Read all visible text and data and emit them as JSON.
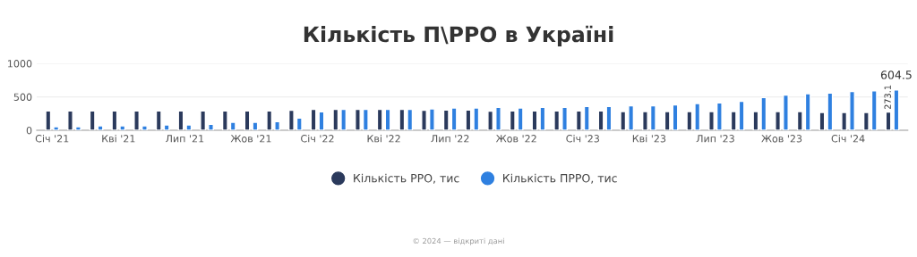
{
  "chart_data": {
    "type": "bar",
    "title": "Кількість П\\РРО в Україні",
    "categories": [
      "Січ '21",
      null,
      null,
      "Кві '21",
      null,
      null,
      "Лип '21",
      null,
      null,
      "Жов '21",
      null,
      null,
      "Січ '22",
      null,
      null,
      "Кві '22",
      null,
      null,
      "Лип '22",
      null,
      null,
      "Жов '22",
      null,
      null,
      "Січ '23",
      null,
      null,
      "Кві '23",
      null,
      null,
      "Лип '23",
      null,
      null,
      "Жов '23",
      null,
      null,
      "Січ '24",
      null,
      null
    ],
    "series": [
      {
        "name": "Кількість РРО, тис",
        "color": "#2b3a5c",
        "values": [
          290,
          290,
          290,
          290,
          290,
          290,
          290,
          290,
          290,
          290,
          290,
          300,
          312,
          312,
          312,
          312,
          312,
          300,
          303,
          303,
          285,
          290,
          290,
          290,
          290,
          290,
          281,
          281,
          281,
          281,
          281,
          281,
          281,
          281,
          281,
          268,
          268,
          268,
          273.1
        ],
        "value_labels": [
          null,
          null,
          null,
          null,
          null,
          null,
          null,
          null,
          null,
          null,
          null,
          null,
          null,
          null,
          null,
          null,
          null,
          null,
          null,
          null,
          null,
          null,
          null,
          null,
          null,
          null,
          null,
          null,
          null,
          null,
          null,
          null,
          null,
          null,
          null,
          null,
          null,
          null,
          "273.1"
        ]
      },
      {
        "name": "Кількість ПРРО, тис",
        "color": "#2f80e0",
        "values": [
          53,
          53,
          67,
          67,
          67,
          80,
          80,
          89,
          120,
          120,
          130,
          183,
          277,
          312,
          312,
          312,
          312,
          321,
          335,
          335,
          343,
          335,
          343,
          343,
          357,
          357,
          366,
          366,
          379,
          401,
          410,
          432,
          490,
          526,
          548,
          557,
          580,
          589,
          604.5
        ],
        "value_labels": [
          null,
          null,
          null,
          null,
          null,
          null,
          null,
          null,
          null,
          null,
          null,
          null,
          null,
          null,
          null,
          null,
          null,
          null,
          null,
          null,
          null,
          null,
          null,
          null,
          null,
          null,
          null,
          null,
          null,
          null,
          null,
          null,
          null,
          null,
          null,
          null,
          null,
          null,
          "604.5"
        ]
      }
    ],
    "ylim": [
      0,
      1000
    ],
    "yticks": [
      0,
      500,
      1000
    ],
    "grid": "y",
    "legend": "bottom",
    "annotations": [
      "© 2024 — відкриті дані"
    ]
  }
}
